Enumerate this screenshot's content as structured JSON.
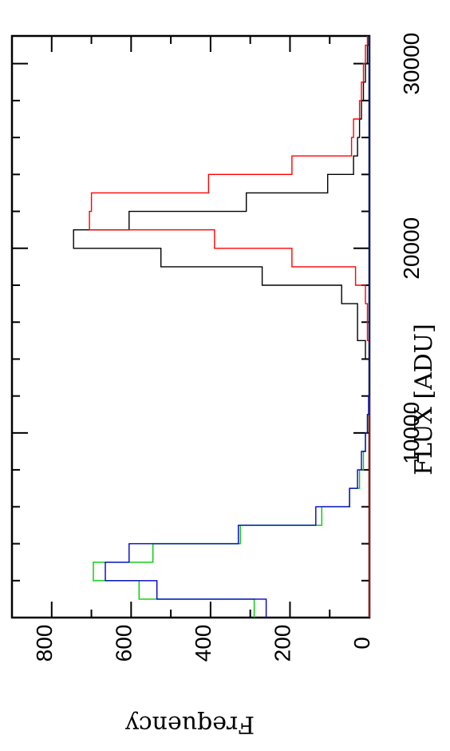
{
  "chart_data": {
    "type": "bar",
    "orientation": "rotated-90",
    "histogram": true,
    "xlabel": "FLUX  [ADU]",
    "ylabel": "Frequency",
    "xlim": [
      0,
      31500
    ],
    "ylim": [
      0,
      900
    ],
    "x_ticks": [
      {
        "value": 10000,
        "label": "10000"
      },
      {
        "value": 20000,
        "label": "20000"
      },
      {
        "value": 30000,
        "label": "30000"
      }
    ],
    "y_ticks": [
      {
        "value": 0,
        "label": "0"
      },
      {
        "value": 200,
        "label": "200"
      },
      {
        "value": 400,
        "label": "400"
      },
      {
        "value": 600,
        "label": "600"
      },
      {
        "value": 800,
        "label": "800"
      }
    ],
    "x_minor_step": 2000,
    "y_minor_step": 100,
    "grid": false,
    "legend": "none",
    "bin_width": 1000,
    "bin_start": 0,
    "series": [
      {
        "color": "#000000",
        "values": [
          0,
          0,
          0,
          0,
          0,
          0,
          0,
          0,
          0,
          0,
          0,
          0,
          0,
          0,
          10,
          30,
          30,
          70,
          270,
          525,
          745,
          605,
          310,
          105,
          40,
          30,
          25,
          20,
          15,
          10,
          5,
          2,
          0,
          0,
          0,
          0,
          0,
          0,
          0,
          0,
          0,
          0,
          0,
          0,
          0,
          0,
          0,
          0
        ]
      },
      {
        "color": "#ff0000",
        "values": [
          0,
          0,
          0,
          0,
          0,
          0,
          0,
          0,
          0,
          0,
          0,
          0,
          0,
          0,
          0,
          5,
          5,
          10,
          35,
          195,
          390,
          705,
          700,
          405,
          195,
          45,
          40,
          25,
          20,
          15,
          10,
          5,
          2,
          0,
          0,
          0,
          0,
          0,
          0,
          0,
          0,
          0,
          0,
          0,
          0,
          0,
          0,
          0
        ]
      },
      {
        "color": "#00cc00",
        "values": [
          290,
          580,
          695,
          545,
          325,
          120,
          50,
          25,
          15,
          10,
          5,
          2,
          0,
          0,
          0,
          0,
          0,
          0,
          0,
          0,
          0,
          0,
          0,
          0,
          0,
          0,
          0,
          0,
          0,
          0,
          0,
          0,
          0,
          0,
          0,
          0,
          0,
          0,
          0,
          0,
          0,
          0,
          0,
          0,
          0,
          0,
          0,
          0
        ]
      },
      {
        "color": "#0000cc",
        "values": [
          260,
          535,
          665,
          605,
          330,
          135,
          50,
          30,
          20,
          10,
          5,
          2,
          0,
          0,
          0,
          0,
          0,
          0,
          0,
          0,
          0,
          0,
          0,
          0,
          0,
          0,
          0,
          0,
          0,
          0,
          0,
          0,
          0,
          0,
          0,
          0,
          0,
          0,
          0,
          0,
          0,
          0,
          0,
          0,
          0,
          0,
          0,
          0
        ]
      }
    ]
  }
}
